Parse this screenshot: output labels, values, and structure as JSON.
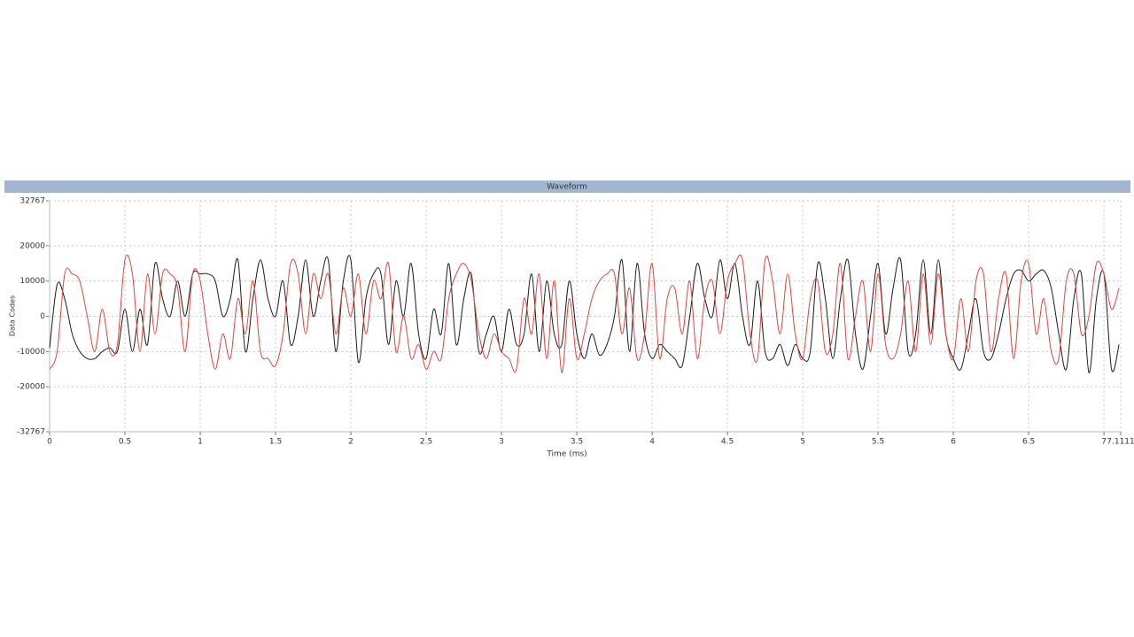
{
  "chart_data": {
    "type": "line",
    "title": "Waveform",
    "x_label": "Time (ms)",
    "y_label": "Data Codes",
    "xlim": [
      0,
      7.1111
    ],
    "xticks": [
      0,
      0.5,
      1,
      1.5,
      2,
      2.5,
      3,
      3.5,
      4,
      4.5,
      5,
      5.5,
      6,
      6.5,
      7,
      7.1111
    ],
    "ylim": [
      -32767,
      32767
    ],
    "yticks": [
      -32767,
      -20000,
      -10000,
      0,
      10000,
      20000,
      32767
    ],
    "grid": true,
    "x": [
      0,
      0.05,
      0.1,
      0.15,
      0.2,
      0.25,
      0.3,
      0.35,
      0.4,
      0.45,
      0.5,
      0.55,
      0.6,
      0.65,
      0.7,
      0.75,
      0.8,
      0.85,
      0.9,
      0.95,
      1,
      1.05,
      1.1,
      1.15,
      1.2,
      1.25,
      1.3,
      1.35,
      1.4,
      1.45,
      1.5,
      1.55,
      1.6,
      1.65,
      1.7,
      1.75,
      1.8,
      1.85,
      1.9,
      1.95,
      2,
      2.05,
      2.1,
      2.15,
      2.2,
      2.25,
      2.3,
      2.35,
      2.4,
      2.45,
      2.5,
      2.55,
      2.6,
      2.65,
      2.7,
      2.75,
      2.8,
      2.85,
      2.9,
      2.95,
      3,
      3.05,
      3.1,
      3.15,
      3.2,
      3.25,
      3.3,
      3.35,
      3.4,
      3.45,
      3.5,
      3.55,
      3.6,
      3.65,
      3.7,
      3.75,
      3.8,
      3.85,
      3.9,
      3.95,
      4,
      4.05,
      4.1,
      4.15,
      4.2,
      4.25,
      4.3,
      4.35,
      4.4,
      4.45,
      4.5,
      4.55,
      4.6,
      4.65,
      4.7,
      4.75,
      4.8,
      4.85,
      4.9,
      4.95,
      5,
      5.05,
      5.1,
      5.15,
      5.2,
      5.25,
      5.3,
      5.35,
      5.4,
      5.45,
      5.5,
      5.55,
      5.6,
      5.65,
      5.7,
      5.75,
      5.8,
      5.85,
      5.9,
      5.95,
      6,
      6.05,
      6.1,
      6.15,
      6.2,
      6.25,
      6.3,
      6.35,
      6.4,
      6.45,
      6.5,
      6.55,
      6.6,
      6.65,
      6.7,
      6.75,
      6.8,
      6.85,
      6.9,
      6.95,
      7,
      7.05,
      7.1
    ],
    "series": [
      {
        "color": "#1a1a1a",
        "values": [
          -9000,
          9000,
          5000,
          -5000,
          -10000,
          -12000,
          -12000,
          -10000,
          -9000,
          -10000,
          2000,
          -10000,
          2000,
          -8000,
          15000,
          5000,
          0,
          10000,
          0,
          12000,
          12000,
          12000,
          10000,
          0,
          5000,
          16000,
          -10000,
          5000,
          16000,
          5000,
          0,
          10000,
          -8000,
          0,
          16000,
          0,
          10000,
          16000,
          -10000,
          10000,
          16000,
          -13000,
          5000,
          12000,
          12000,
          -8000,
          10000,
          0,
          15000,
          -5000,
          -12000,
          2000,
          -5000,
          15000,
          -8000,
          5000,
          12000,
          -10000,
          -5000,
          0,
          -10000,
          2000,
          -8000,
          -5000,
          12000,
          -10000,
          10000,
          -5000,
          -8000,
          10000,
          -5000,
          -12000,
          -5000,
          -11000,
          -8000,
          0,
          16000,
          -10000,
          15000,
          -5000,
          -12000,
          -8000,
          -10000,
          -12000,
          -14000,
          0,
          15000,
          5000,
          0,
          16000,
          5000,
          15000,
          0,
          -8000,
          10000,
          -10000,
          -12000,
          -8000,
          -14000,
          -8000,
          -12000,
          -10000,
          15000,
          5000,
          -12000,
          5000,
          16000,
          -5000,
          -15000,
          0,
          15000,
          -5000,
          8000,
          16000,
          -10000,
          -5000,
          16000,
          -5000,
          16000,
          -5000,
          -12000,
          -15000,
          -5000,
          5000,
          -10000,
          -12000,
          -5000,
          5000,
          12000,
          13000,
          10000,
          12000,
          13000,
          8000,
          -5000,
          -15000,
          5000,
          12000,
          -16000,
          5000,
          12000,
          -15000,
          -8000
        ]
      },
      {
        "color": "#e0453c",
        "values": [
          -15000,
          -10000,
          12000,
          12000,
          10000,
          0,
          -10000,
          2000,
          -10000,
          -8000,
          16000,
          12000,
          -10000,
          12000,
          -5000,
          12000,
          12000,
          8000,
          -10000,
          12000,
          10000,
          -5000,
          -15000,
          -5000,
          -12000,
          5000,
          -5000,
          10000,
          -10000,
          -12000,
          -14000,
          -5000,
          15000,
          12000,
          -5000,
          12000,
          5000,
          12000,
          -5000,
          8000,
          0,
          12000,
          -5000,
          10000,
          5000,
          15000,
          -10000,
          0,
          -12000,
          -8000,
          -15000,
          -10000,
          -12000,
          5000,
          12000,
          15000,
          10000,
          -5000,
          -12000,
          -5000,
          -10000,
          -12000,
          -15000,
          5000,
          -5000,
          12000,
          -12000,
          10000,
          -16000,
          5000,
          -12000,
          -5000,
          5000,
          10000,
          12000,
          12000,
          -5000,
          8000,
          -12000,
          -5000,
          15000,
          -12000,
          5000,
          8000,
          -5000,
          10000,
          -12000,
          5000,
          10000,
          -5000,
          10000,
          15000,
          16000,
          -5000,
          -12000,
          16000,
          10000,
          -5000,
          12000,
          -5000,
          -12000,
          5000,
          10000,
          -10000,
          -5000,
          15000,
          -12000,
          0,
          10000,
          -10000,
          12000,
          -8000,
          -12000,
          -5000,
          10000,
          -10000,
          12000,
          -8000,
          12000,
          -5000,
          -12000,
          5000,
          -10000,
          10000,
          12000,
          -10000,
          5000,
          12000,
          -12000,
          10000,
          15000,
          -5000,
          5000,
          -10000,
          -12000,
          10000,
          12000,
          -5000,
          0,
          15000,
          12000,
          2000,
          8000
        ]
      }
    ]
  }
}
